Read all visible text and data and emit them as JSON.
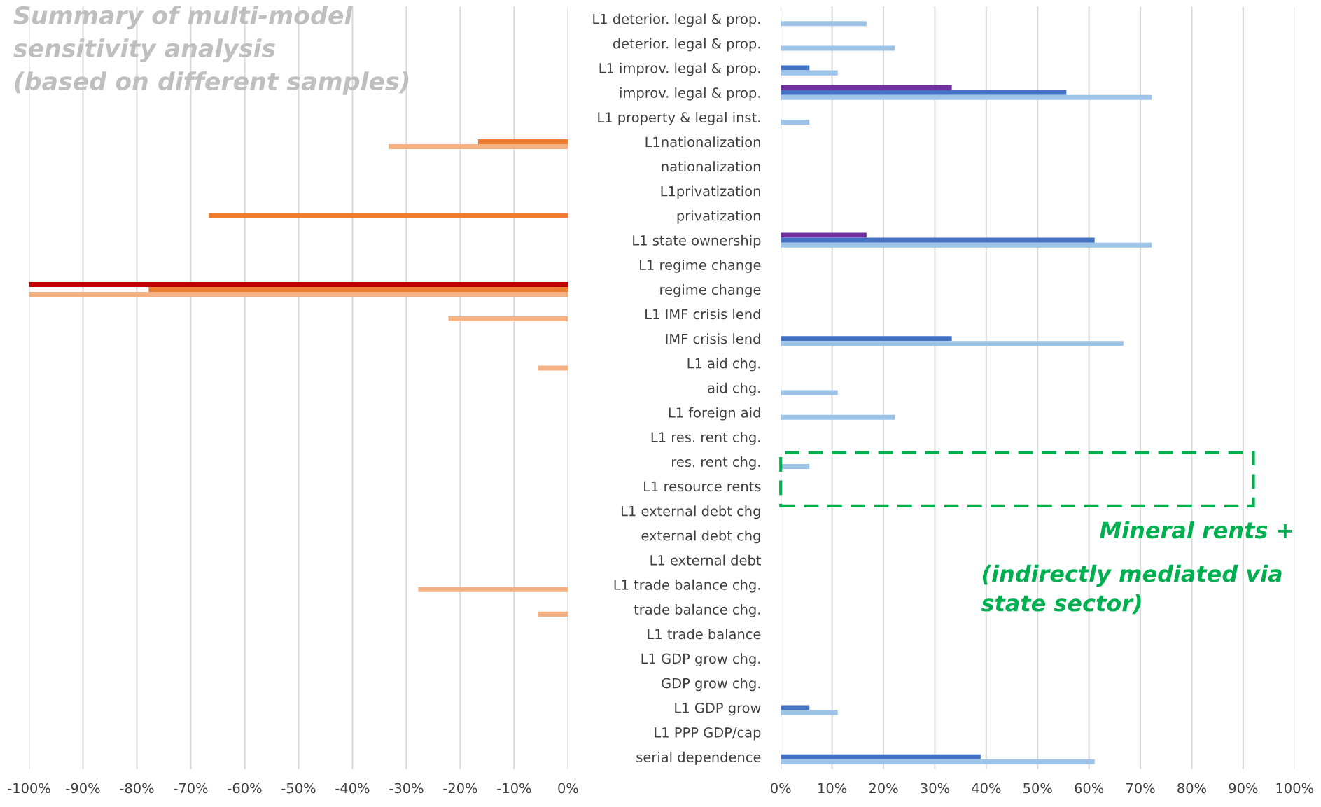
{
  "chart_data": [
    {
      "type": "bar",
      "orientation": "horizontal",
      "title": "Summary of multi-model\nsensitivity analysis\n(based on different samples)",
      "grid": "x",
      "legend": false,
      "categories": [
        null,
        null,
        null,
        null,
        null,
        null,
        null,
        null,
        null,
        null,
        null,
        null,
        null,
        null,
        null,
        null,
        null,
        null,
        null,
        null,
        null,
        null,
        null,
        null,
        null,
        null,
        null,
        null,
        null,
        null,
        null
      ],
      "series": [
        {
          "color": "#c00000",
          "values": [
            null,
            null,
            null,
            null,
            null,
            null,
            null,
            null,
            null,
            null,
            null,
            -100,
            null,
            null,
            null,
            null,
            null,
            null,
            null,
            null,
            null,
            null,
            null,
            null,
            null,
            null,
            null,
            null,
            null,
            null,
            null
          ]
        },
        {
          "color": "#ed7d31",
          "values": [
            null,
            null,
            null,
            null,
            null,
            -16.7,
            null,
            null,
            -66.7,
            null,
            null,
            -77.8,
            null,
            null,
            null,
            null,
            null,
            null,
            null,
            null,
            null,
            null,
            null,
            null,
            null,
            null,
            null,
            null,
            null,
            null,
            null
          ]
        },
        {
          "color": "#f4b183",
          "values": [
            null,
            null,
            null,
            null,
            null,
            -33.3,
            null,
            null,
            null,
            null,
            null,
            -100,
            -22.2,
            null,
            -5.6,
            null,
            null,
            null,
            null,
            null,
            null,
            null,
            null,
            -27.8,
            -5.6,
            null,
            null,
            null,
            null,
            null,
            null
          ]
        }
      ],
      "xlim": [
        -100,
        0
      ],
      "xticks": [
        {
          "value": -100,
          "label": "-100%"
        },
        {
          "value": -90,
          "label": "-90%"
        },
        {
          "value": -80,
          "label": "-80%"
        },
        {
          "value": -70,
          "label": "-70%"
        },
        {
          "value": -60,
          "label": "-60%"
        },
        {
          "value": -50,
          "label": "-50%"
        },
        {
          "value": -40,
          "label": "-40%"
        },
        {
          "value": -30,
          "label": "-30%"
        },
        {
          "value": -20,
          "label": "-20%"
        },
        {
          "value": -10,
          "label": "-10%"
        },
        {
          "value": 0,
          "label": "0%"
        }
      ]
    },
    {
      "type": "bar",
      "orientation": "horizontal",
      "grid": "x",
      "legend": false,
      "annotations": [
        "Mineral rents +",
        "(indirectly mediated via\nstate sector)"
      ],
      "categories": [
        "L1 deterior. legal & prop.",
        "deterior. legal & prop.",
        "L1 improv. legal & prop.",
        "improv. legal & prop.",
        "L1 property & legal inst.",
        "L1nationalization",
        "nationalization",
        "L1privatization",
        "privatization",
        "L1 state ownership",
        "L1 regime change",
        "regime change",
        "L1 IMF crisis lend",
        "IMF crisis lend",
        "L1 aid chg.",
        "aid chg.",
        "L1 foreign aid",
        "L1 res. rent chg.",
        "res. rent chg.",
        "L1 resource rents",
        "L1 external debt chg",
        "external debt chg",
        "L1 external debt",
        "L1 trade balance chg.",
        "trade balance chg.",
        "L1 trade balance",
        "L1 GDP grow chg.",
        "GDP grow chg.",
        "L1 GDP grow",
        "L1 PPP GDP/cap",
        "serial dependence"
      ],
      "series": [
        {
          "color": "#7030a0",
          "values": [
            null,
            null,
            null,
            33.3,
            null,
            null,
            null,
            null,
            null,
            16.7,
            null,
            null,
            null,
            null,
            null,
            null,
            null,
            null,
            null,
            null,
            null,
            null,
            null,
            null,
            null,
            null,
            null,
            null,
            null,
            null,
            null
          ]
        },
        {
          "color": "#4472c4",
          "values": [
            null,
            null,
            5.6,
            55.6,
            null,
            null,
            null,
            null,
            null,
            61.1,
            null,
            null,
            null,
            33.3,
            null,
            null,
            null,
            null,
            null,
            null,
            null,
            null,
            null,
            null,
            null,
            null,
            null,
            null,
            5.6,
            null,
            38.9
          ]
        },
        {
          "color": "#9dc3e6",
          "values": [
            16.7,
            22.2,
            11.1,
            72.2,
            5.6,
            null,
            null,
            null,
            null,
            72.2,
            null,
            null,
            null,
            66.7,
            null,
            11.1,
            22.2,
            null,
            5.6,
            null,
            null,
            null,
            null,
            null,
            null,
            null,
            null,
            null,
            11.1,
            null,
            61.1
          ]
        }
      ],
      "xlim": [
        0,
        100
      ],
      "xticks": [
        {
          "value": 0,
          "label": "0%"
        },
        {
          "value": 10,
          "label": "10%"
        },
        {
          "value": 20,
          "label": "20%"
        },
        {
          "value": 30,
          "label": "30%"
        },
        {
          "value": 40,
          "label": "40%"
        },
        {
          "value": 50,
          "label": "50%"
        },
        {
          "value": 60,
          "label": "60%"
        },
        {
          "value": 70,
          "label": "70%"
        },
        {
          "value": 80,
          "label": "80%"
        },
        {
          "value": 90,
          "label": "90%"
        },
        {
          "value": 100,
          "label": "100%"
        }
      ]
    }
  ]
}
